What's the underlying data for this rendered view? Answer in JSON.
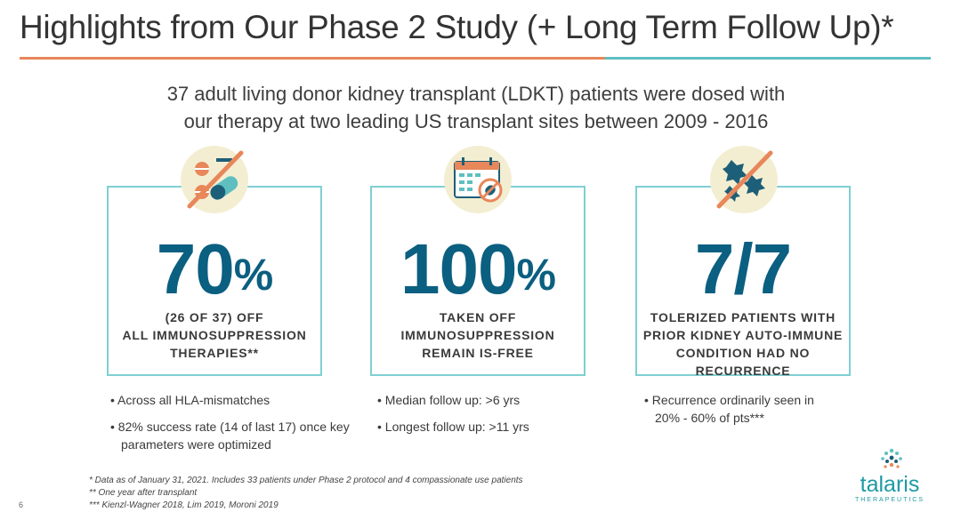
{
  "header": {
    "title": "Highlights from Our Phase 2 Study (+ Long Term Follow Up)*",
    "subtitle_line1": "37 adult living donor kidney transplant (LDKT) patients were dosed with",
    "subtitle_line2": "our therapy at two leading US transplant sites between 2009 - 2016"
  },
  "cards": [
    {
      "icon": "no-pills-icon",
      "stat": "70",
      "stat_suffix": "%",
      "desc_lines": [
        "(26 OF 37) OFF",
        "ALL IMMUNOSUPPRESSION",
        "THERAPIES**"
      ],
      "bullets": [
        "Across all HLA-mismatches",
        "82% success rate (14 of last 17) once key parameters were optimized"
      ]
    },
    {
      "icon": "calendar-pill-icon",
      "stat": "100",
      "stat_suffix": "%",
      "desc_lines": [
        "TAKEN OFF",
        "IMMUNOSUPPRESSION",
        "REMAIN IS-FREE"
      ],
      "bullets": [
        "Median follow up: >6 yrs",
        "Longest follow up: >11 yrs"
      ]
    },
    {
      "icon": "no-cells-icon",
      "stat": "7/7",
      "stat_suffix": "",
      "desc_lines": [
        "TOLERIZED PATIENTS WITH",
        "PRIOR KIDNEY AUTO-IMMUNE",
        "CONDITION HAD NO",
        "RECURRENCE"
      ],
      "bullets": [
        "Recurrence ordinarily seen in 20% - 60% of pts***"
      ]
    }
  ],
  "footnotes": [
    "* Data as of January 31, 2021.  Includes 33 patients under Phase 2 protocol and 4 compassionate use patients",
    "** One year after transplant",
    "*** Kienzl-Wagner 2018, Lim 2019, Moroni 2019"
  ],
  "page_number": "6",
  "logo": {
    "word": "talaris",
    "sub": "THERAPEUTICS"
  },
  "colors": {
    "orange": "#e8875a",
    "teal": "#5fbfc0",
    "navy": "#0b5f80",
    "card_border": "#7fd0d2",
    "icon_bg": "#f3eed2"
  }
}
